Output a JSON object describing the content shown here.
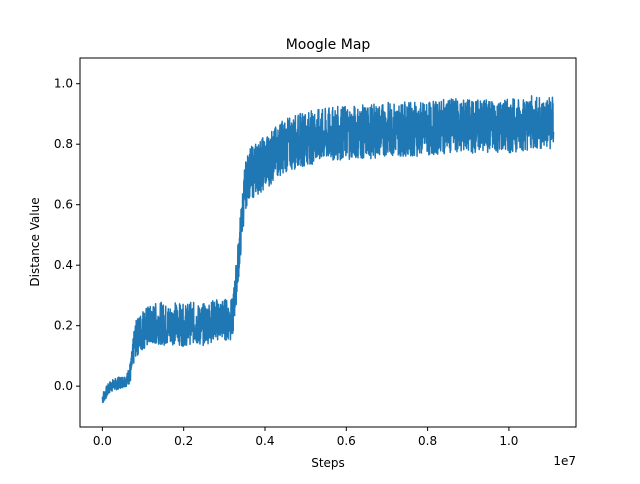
{
  "chart_data": {
    "type": "line",
    "title": "Moogle Map",
    "xlabel": "Steps",
    "ylabel": "Distance Value",
    "x_scale_label": "1e7",
    "xlim": [
      -0.055,
      1.165
    ],
    "ylim": [
      -0.135,
      1.085
    ],
    "x_ticks": [
      0.0,
      0.2,
      0.4,
      0.6,
      0.8,
      1.0
    ],
    "x_tick_labels": [
      "0.0",
      "0.2",
      "0.4",
      "0.6",
      "0.8",
      "1.0"
    ],
    "y_ticks": [
      0.0,
      0.2,
      0.4,
      0.6,
      0.8,
      1.0
    ],
    "y_tick_labels": [
      "0.0",
      "0.2",
      "0.4",
      "0.6",
      "0.8",
      "1.0"
    ],
    "grid": false,
    "legend": "none",
    "series": [
      {
        "color": "#1f77b4",
        "x": [
          0.0,
          0.02,
          0.04,
          0.06,
          0.07,
          0.08,
          0.1,
          0.12,
          0.14,
          0.16,
          0.18,
          0.2,
          0.22,
          0.24,
          0.26,
          0.28,
          0.3,
          0.32,
          0.33,
          0.34,
          0.35,
          0.36,
          0.37,
          0.38,
          0.4,
          0.42,
          0.44,
          0.46,
          0.48,
          0.5,
          0.55,
          0.6,
          0.65,
          0.7,
          0.75,
          0.8,
          0.85,
          0.9,
          0.95,
          1.0,
          1.05,
          1.1,
          1.11
        ],
        "y": [
          -0.04,
          0.0,
          0.01,
          0.02,
          0.05,
          0.15,
          0.19,
          0.2,
          0.21,
          0.2,
          0.21,
          0.2,
          0.21,
          0.2,
          0.21,
          0.22,
          0.22,
          0.22,
          0.35,
          0.5,
          0.65,
          0.7,
          0.71,
          0.72,
          0.74,
          0.76,
          0.79,
          0.8,
          0.81,
          0.82,
          0.83,
          0.84,
          0.84,
          0.85,
          0.85,
          0.85,
          0.86,
          0.86,
          0.86,
          0.86,
          0.87,
          0.87,
          0.87
        ],
        "band": [
          0.02,
          0.02,
          0.02,
          0.02,
          0.04,
          0.06,
          0.07,
          0.07,
          0.07,
          0.07,
          0.07,
          0.07,
          0.07,
          0.07,
          0.07,
          0.07,
          0.07,
          0.07,
          0.07,
          0.08,
          0.08,
          0.08,
          0.09,
          0.09,
          0.09,
          0.09,
          0.09,
          0.09,
          0.09,
          0.09,
          0.09,
          0.09,
          0.09,
          0.09,
          0.09,
          0.09,
          0.09,
          0.09,
          0.09,
          0.09,
          0.09,
          0.09,
          0.09
        ]
      }
    ]
  }
}
